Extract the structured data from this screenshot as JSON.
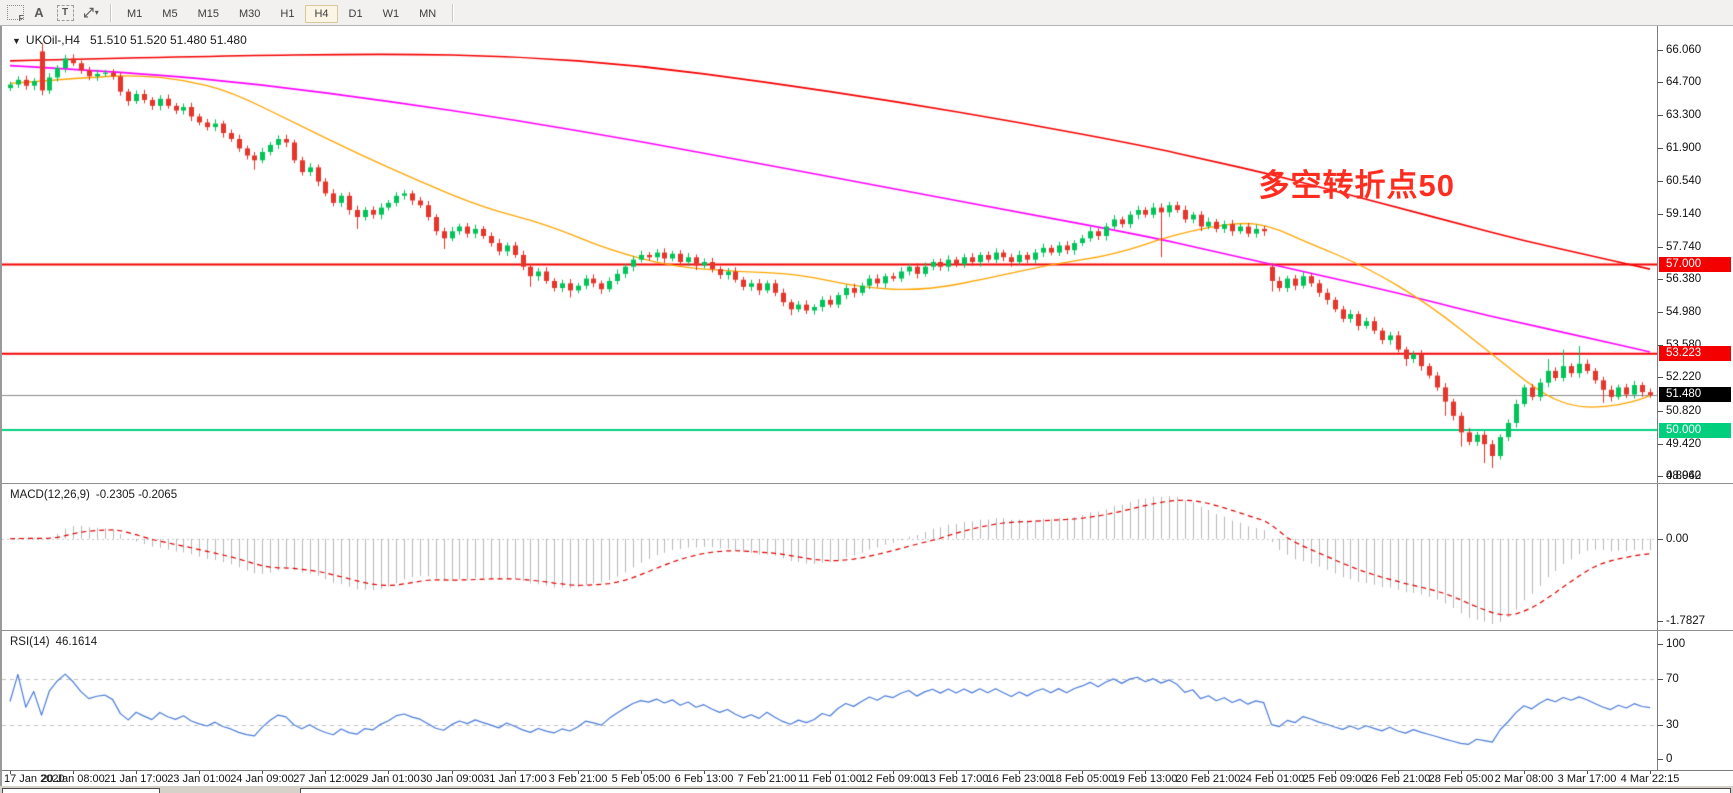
{
  "toolbar": {
    "icons": [
      {
        "name": "indicators-grid-icon",
        "badge": "F"
      },
      {
        "name": "text-label-icon",
        "glyph": "A"
      },
      {
        "name": "text-box-icon",
        "glyph": "T"
      },
      {
        "name": "crosshair-tool-icon",
        "glyph": "⤢"
      },
      {
        "name": "dropdown-caret-icon",
        "glyph": "▾"
      }
    ],
    "timeframes": [
      "M1",
      "M5",
      "M15",
      "M30",
      "H1",
      "H4",
      "D1",
      "W1",
      "MN"
    ],
    "active_timeframe": "H4"
  },
  "chart": {
    "title": {
      "caret": "▼",
      "symbol": "UKOil-,H4",
      "quote": "51.510 51.520 51.480 51.480"
    },
    "annotation": {
      "text": "多空转折点50",
      "color": "#FF2D20"
    },
    "price_axis": {
      "top_price": 66.99,
      "bottom_price": 47.93,
      "labels": [
        {
          "text": "66.060",
          "price": 66.06
        },
        {
          "text": "64.700",
          "price": 64.7
        },
        {
          "text": "63.300",
          "price": 63.3
        },
        {
          "text": "61.900",
          "price": 61.9
        },
        {
          "text": "60.540",
          "price": 60.54
        },
        {
          "text": "59.140",
          "price": 59.14
        },
        {
          "text": "57.740",
          "price": 57.74
        },
        {
          "text": "56.380",
          "price": 56.38
        },
        {
          "text": "54.980",
          "price": 54.98
        },
        {
          "text": "53.580",
          "price": 53.58
        },
        {
          "text": "52.220",
          "price": 52.22
        },
        {
          "text": "50.820",
          "price": 50.82
        },
        {
          "text": "49.420",
          "price": 49.42
        },
        {
          "text": "48.060",
          "price": 48.06
        }
      ]
    },
    "levels": [
      {
        "price": 57.0,
        "label": "57.000",
        "color": "#F50000",
        "width": 2
      },
      {
        "price": 53.223,
        "label": "53.223",
        "color": "#F50000",
        "width": 2
      },
      {
        "price": 50.0,
        "label": "50.000",
        "color": "#00D07E",
        "width": 2
      }
    ],
    "current_price": {
      "price": 51.48,
      "label": "51.480",
      "line_color": "#8a8a8a",
      "badge_bg": "#000000"
    },
    "candles": {
      "up_color": "#00C45A",
      "down_color": "#E6352B",
      "default_wick": 0.12,
      "closes": [
        64.6,
        64.8,
        64.55,
        64.75,
        64.35,
        64.9,
        65.3,
        65.7,
        65.5,
        65.2,
        64.95,
        65.05,
        65.1,
        64.95,
        64.3,
        63.9,
        64.2,
        63.95,
        63.7,
        64.0,
        63.7,
        63.5,
        63.65,
        63.25,
        63.0,
        62.8,
        62.95,
        62.55,
        62.3,
        61.9,
        61.6,
        61.4,
        61.75,
        62.05,
        62.3,
        62.15,
        61.4,
        60.9,
        61.1,
        60.5,
        60.0,
        59.6,
        59.9,
        59.3,
        59.0,
        59.3,
        59.1,
        59.4,
        59.6,
        59.9,
        60.0,
        59.7,
        59.5,
        59.0,
        58.4,
        58.1,
        58.4,
        58.6,
        58.3,
        58.5,
        58.2,
        57.9,
        57.55,
        57.8,
        57.4,
        56.9,
        56.5,
        56.7,
        56.3,
        56.0,
        56.2,
        55.9,
        56.1,
        56.4,
        56.2,
        55.95,
        56.3,
        56.6,
        56.9,
        57.2,
        57.4,
        57.3,
        57.5,
        57.25,
        57.45,
        57.1,
        57.3,
        56.95,
        57.1,
        56.8,
        56.55,
        56.7,
        56.35,
        56.05,
        56.2,
        55.9,
        56.2,
        55.8,
        55.4,
        55.1,
        55.3,
        55.05,
        55.2,
        55.5,
        55.3,
        55.7,
        56.0,
        55.8,
        56.1,
        56.4,
        56.2,
        56.5,
        56.4,
        56.7,
        56.9,
        56.6,
        56.9,
        57.1,
        56.9,
        57.2,
        57.0,
        57.3,
        57.1,
        57.4,
        57.2,
        57.5,
        57.3,
        57.1,
        57.4,
        57.2,
        57.5,
        57.7,
        57.5,
        57.8,
        57.6,
        57.9,
        58.1,
        58.4,
        58.2,
        58.6,
        58.9,
        58.7,
        59.1,
        59.3,
        59.1,
        59.4,
        59.2,
        59.5,
        59.3,
        58.9,
        59.1,
        58.6,
        58.8,
        58.5,
        58.7,
        58.4,
        58.6,
        58.3,
        58.5,
        58.4,
        56.3,
        56.0,
        56.4,
        56.1,
        56.5,
        56.2,
        55.8,
        55.5,
        55.1,
        54.7,
        54.9,
        54.4,
        54.6,
        54.2,
        53.8,
        54.0,
        53.4,
        53.0,
        53.2,
        52.7,
        52.3,
        51.8,
        51.2,
        50.6,
        49.9,
        49.5,
        49.8,
        49.4,
        48.9,
        49.7,
        50.3,
        51.1,
        51.8,
        51.4,
        52.0,
        52.5,
        52.2,
        52.7,
        52.4,
        52.8,
        52.5,
        52.1,
        51.7,
        51.4,
        51.8,
        51.5,
        51.9,
        51.6,
        51.48
      ],
      "open_overrides": {
        "4": 66.0,
        "160": 56.9
      },
      "high_overrides": {
        "4": 66.35,
        "50": 60.15,
        "145": 59.6,
        "147": 59.64,
        "195": 53.0,
        "197": 53.4,
        "199": 53.55
      },
      "low_overrides": {
        "4": 64.15,
        "31": 61.0,
        "44": 58.5,
        "55": 57.65,
        "66": 56.05,
        "71": 55.6,
        "99": 54.85,
        "146": 57.3,
        "160": 55.85,
        "177": 52.7,
        "182": 50.6,
        "184": 49.3,
        "187": 48.6,
        "188": 48.4,
        "202": 51.15
      }
    },
    "moving_averages": [
      {
        "name": "ma-slow-red",
        "color": "#F50000",
        "width": 1.6,
        "points": [
          [
            0,
            65.6
          ],
          [
            24,
            65.8
          ],
          [
            48,
            65.9
          ],
          [
            64,
            65.8
          ],
          [
            80,
            65.4
          ],
          [
            96,
            64.7
          ],
          [
            112,
            63.9
          ],
          [
            128,
            63.0
          ],
          [
            144,
            62.0
          ],
          [
            152,
            61.4
          ],
          [
            160,
            60.8
          ],
          [
            168,
            60.1
          ],
          [
            176,
            59.4
          ],
          [
            184,
            58.7
          ],
          [
            192,
            58.0
          ],
          [
            200,
            57.4
          ],
          [
            208,
            56.8
          ]
        ]
      },
      {
        "name": "ma-medium-magenta",
        "color": "#FF00FF",
        "width": 1.6,
        "points": [
          [
            0,
            65.4
          ],
          [
            16,
            65.1
          ],
          [
            32,
            64.6
          ],
          [
            48,
            63.9
          ],
          [
            64,
            63.1
          ],
          [
            80,
            62.2
          ],
          [
            96,
            61.2
          ],
          [
            112,
            60.2
          ],
          [
            128,
            59.2
          ],
          [
            144,
            58.2
          ],
          [
            152,
            57.6
          ],
          [
            160,
            57.0
          ],
          [
            168,
            56.4
          ],
          [
            176,
            55.8
          ],
          [
            184,
            55.1
          ],
          [
            192,
            54.5
          ],
          [
            200,
            53.9
          ],
          [
            208,
            53.3
          ]
        ]
      },
      {
        "name": "ma-fast-orange",
        "color": "#FFA500",
        "width": 1.3,
        "points": [
          [
            0,
            64.65
          ],
          [
            10,
            64.9
          ],
          [
            16,
            65.0
          ],
          [
            22,
            64.8
          ],
          [
            28,
            64.3
          ],
          [
            36,
            63.0
          ],
          [
            44,
            61.7
          ],
          [
            52,
            60.5
          ],
          [
            60,
            59.4
          ],
          [
            68,
            58.7
          ],
          [
            76,
            57.6
          ],
          [
            84,
            56.9
          ],
          [
            92,
            56.7
          ],
          [
            100,
            56.6
          ],
          [
            108,
            56.0
          ],
          [
            116,
            55.9
          ],
          [
            124,
            56.4
          ],
          [
            132,
            57.0
          ],
          [
            140,
            57.4
          ],
          [
            148,
            58.3
          ],
          [
            156,
            58.8
          ],
          [
            160,
            58.6
          ],
          [
            164,
            58.0
          ],
          [
            172,
            56.9
          ],
          [
            180,
            55.3
          ],
          [
            188,
            53.2
          ],
          [
            194,
            51.6
          ],
          [
            198,
            51.0
          ],
          [
            202,
            50.95
          ],
          [
            206,
            51.2
          ],
          [
            208,
            51.45
          ]
        ]
      }
    ]
  },
  "macd": {
    "label": "MACD(12,26,9)",
    "values_text": "-0.2305 -0.2065",
    "params": {
      "fast": 12,
      "slow": 26,
      "signal": 9
    },
    "scale_max": 0.8942,
    "scale_min": -1.7827,
    "axis_labels": [
      {
        "text": "0.8942",
        "value": 0.8942
      },
      {
        "text": "0.00",
        "value": 0
      },
      {
        "text": "-1.7827",
        "value": -1.7827
      }
    ],
    "histogram_color": "#b9b9b9",
    "signal_color": "#E00000",
    "zero_line_color": "#c8c8c8"
  },
  "rsi": {
    "label": "RSI(14)",
    "value_text": "46.1614",
    "period": 14,
    "line_color": "#4C7BD9",
    "level_line_color": "#c0c0c0",
    "axis_labels": [
      {
        "text": "100",
        "value": 100
      },
      {
        "text": "70",
        "value": 70
      },
      {
        "text": "30",
        "value": 30
      },
      {
        "text": "0",
        "value": 0
      }
    ],
    "levels": [
      70,
      30
    ]
  },
  "timeline": {
    "labels": [
      "17 Jan 2020",
      "20 Jan 08:00",
      "21 Jan 17:00",
      "23 Jan 01:00",
      "24 Jan 09:00",
      "27 Jan 12:00",
      "29 Jan 01:00",
      "30 Jan 09:00",
      "31 Jan 17:00",
      "3 Feb 21:00",
      "5 Feb 05:00",
      "6 Feb 13:00",
      "7 Feb 21:00",
      "11 Feb 01:00",
      "12 Feb 09:00",
      "13 Feb 17:00",
      "16 Feb 23:00",
      "18 Feb 05:00",
      "19 Feb 13:00",
      "20 Feb 21:00",
      "24 Feb 01:00",
      "25 Feb 09:00",
      "26 Feb 21:00",
      "28 Feb 05:00",
      "2 Mar 08:00",
      "3 Mar 17:00",
      "4 Mar 22:15"
    ]
  }
}
